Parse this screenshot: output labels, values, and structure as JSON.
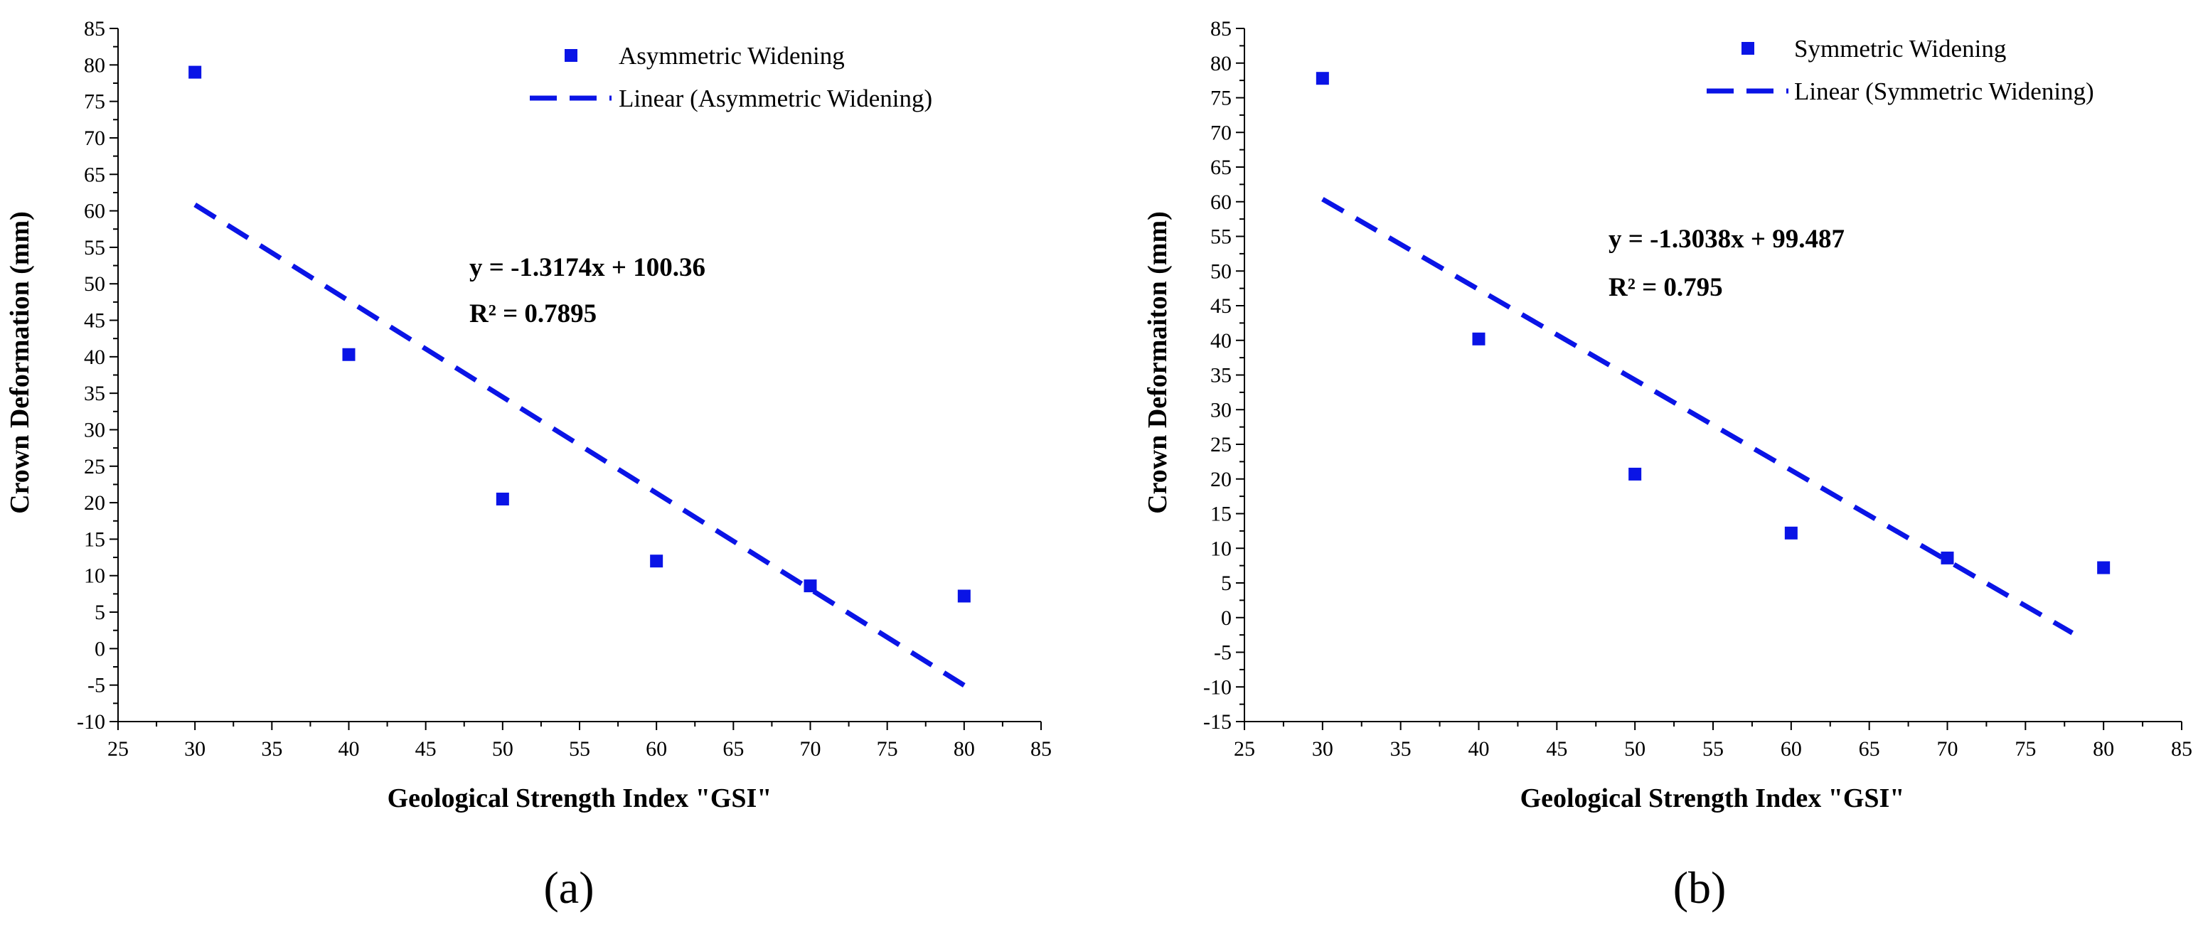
{
  "colors": {
    "marker": "#0a14e6",
    "trendline": "#0a14e6",
    "axis": "#000000"
  },
  "chart_data": [
    {
      "type": "scatter",
      "panel_label": "a",
      "xlabel": "Geological Strength Index \"GSI\"",
      "ylabel": "Crown Deformation (mm)",
      "xlim": [
        25,
        85
      ],
      "ylim": [
        -10,
        85
      ],
      "xticks": [
        25,
        30,
        35,
        40,
        45,
        50,
        55,
        60,
        65,
        70,
        75,
        80,
        85
      ],
      "yticks": [
        -10,
        -5,
        0,
        5,
        10,
        15,
        20,
        25,
        30,
        35,
        40,
        45,
        50,
        55,
        60,
        65,
        70,
        75,
        80,
        85
      ],
      "series": [
        {
          "name": "Asymmetric Widening",
          "x": [
            30,
            40,
            50,
            60,
            70,
            80
          ],
          "y": [
            79,
            40.3,
            20.5,
            12,
            8.6,
            7.2
          ]
        }
      ],
      "trendline": {
        "name": "Linear (Asymmetric Widening)",
        "slope": -1.3174,
        "intercept": 100.36,
        "x_range": [
          30,
          80
        ]
      },
      "equation": "y = -1.3174x + 100.36",
      "r2": "R² = 0.7895",
      "legend_location": "top-right"
    },
    {
      "type": "scatter",
      "panel_label": "b",
      "xlabel": "Geological Strength Index \"GSI\"",
      "ylabel": "Crown Deformaiton (mm)",
      "xlim": [
        25,
        85
      ],
      "ylim": [
        -15,
        85
      ],
      "xticks": [
        25,
        30,
        35,
        40,
        45,
        50,
        55,
        60,
        65,
        70,
        75,
        80,
        85
      ],
      "yticks": [
        -15,
        -10,
        -5,
        0,
        5,
        10,
        15,
        20,
        25,
        30,
        35,
        40,
        45,
        50,
        55,
        60,
        65,
        70,
        75,
        80,
        85
      ],
      "series": [
        {
          "name": "Symmetric Widening",
          "x": [
            30,
            40,
            50,
            60,
            70,
            80
          ],
          "y": [
            77.8,
            40.2,
            20.7,
            12.2,
            8.6,
            7.2
          ]
        }
      ],
      "trendline": {
        "name": "Linear (Symmetric Widening)",
        "slope": -1.3038,
        "intercept": 99.487,
        "x_range": [
          30,
          78
        ]
      },
      "equation": "y = -1.3038x + 99.487",
      "r2": "R² = 0.795",
      "legend_location": "top-right"
    }
  ]
}
